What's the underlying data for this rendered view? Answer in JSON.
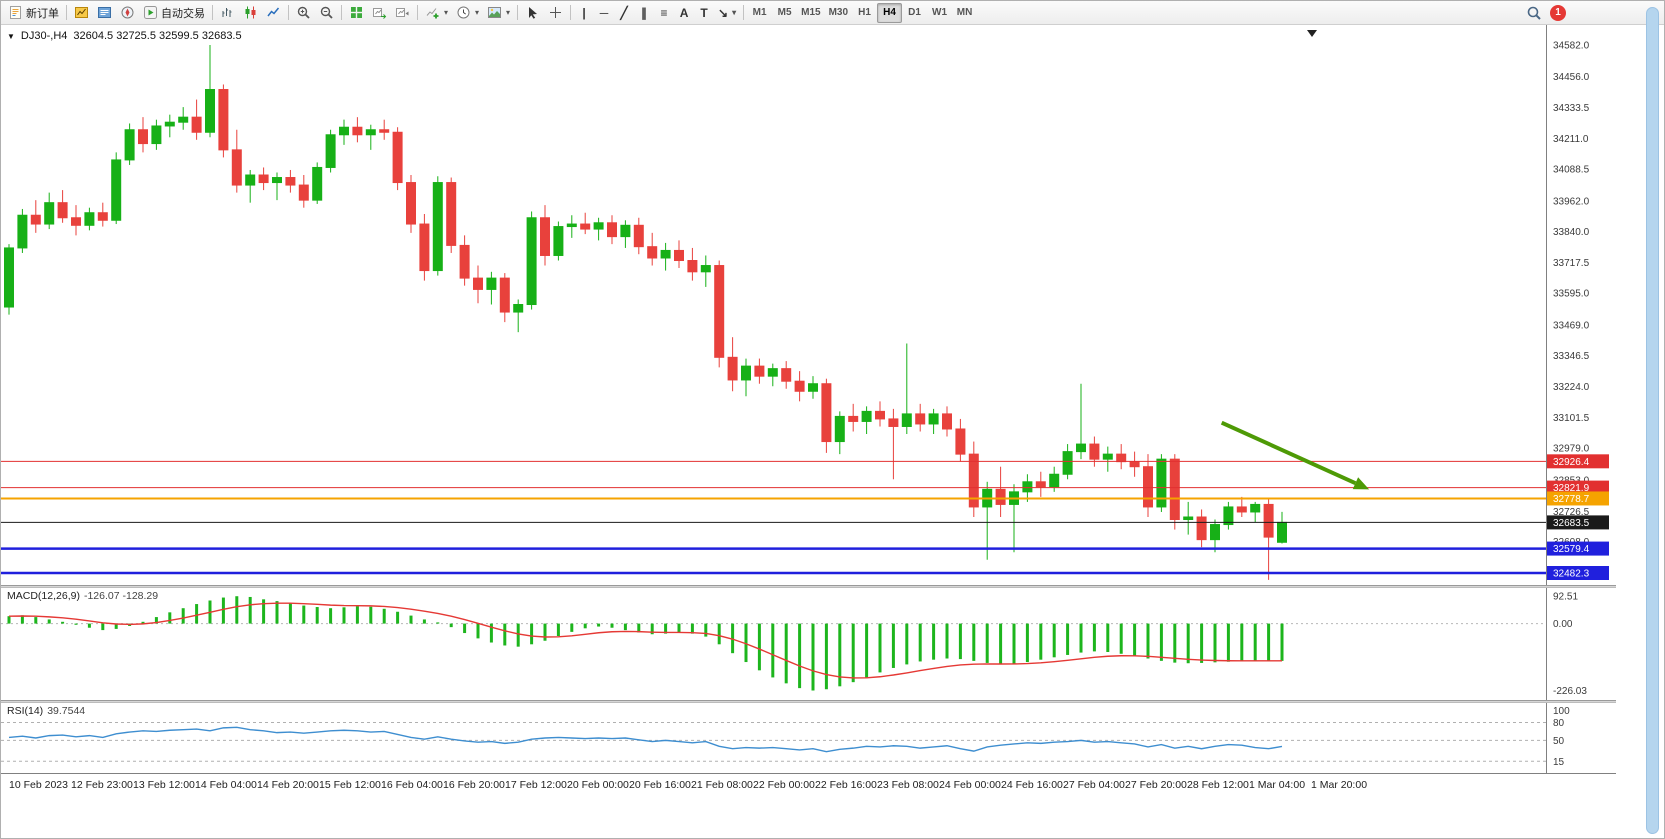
{
  "toolbar": {
    "new_order_label": "新订单",
    "autotrading_label": "自动交易",
    "timeframes": [
      "M1",
      "M5",
      "M15",
      "M30",
      "H1",
      "H4",
      "D1",
      "W1",
      "MN"
    ],
    "active_timeframe": "H4",
    "notification_count": "1",
    "line_tools": [
      {
        "name": "vertical-line",
        "glyph": "|"
      },
      {
        "name": "horizontal-line",
        "glyph": "─"
      },
      {
        "name": "trendline",
        "glyph": "╱"
      },
      {
        "name": "equidistant-channel",
        "glyph": "∥"
      },
      {
        "name": "fibonacci-retracement",
        "glyph": "≡"
      },
      {
        "name": "text",
        "glyph": "A"
      },
      {
        "name": "text-label",
        "glyph": "T"
      },
      {
        "name": "arrows",
        "glyph": "↘",
        "dropdown": true
      }
    ],
    "icons": {
      "new-order": "document",
      "new-chart": "gold-chart",
      "profiles": "blue-window",
      "navigator": "compass",
      "autotrading": "play",
      "bar-chart": "bars",
      "candlestick-chart": "candles",
      "line-chart": "zigzag",
      "zoom-in": "magnifier-plus",
      "zoom-out": "magnifier-minus",
      "tile-windows": "green-grid",
      "auto-scroll": "chart-right-arrow",
      "chart-shift": "chart-left-triangle",
      "indicators": "green-plus-chart",
      "periods": "clock",
      "templates": "picture",
      "cursor": "pointer-arrow",
      "crosshair": "cross",
      "search": "magnifier"
    }
  },
  "chart": {
    "symbol_period": "DJ30-,H4",
    "ohlc_text": "32604.5 32725.5 32599.5 32683.5",
    "scale": {
      "top": 34582.0,
      "bottom": 32482.3
    },
    "colors": {
      "up": "#17b017",
      "down": "#e8413c",
      "background": "#ffffff"
    },
    "price_axis": [
      "34582.0",
      "34456.0",
      "34333.5",
      "34211.0",
      "34088.5",
      "33962.0",
      "33840.0",
      "33717.5",
      "33595.0",
      "33469.0",
      "33346.5",
      "33224.0",
      "33101.5",
      "32979.0",
      "32853.0",
      "32726.5",
      "32608.0",
      "32481.5"
    ],
    "lines": [
      {
        "price": 32926.4,
        "label": "32926.4",
        "color": "#e23030",
        "width": 1
      },
      {
        "price": 32821.9,
        "label": "32821.9",
        "color": "#e23030",
        "width": 1
      },
      {
        "price": 32778.7,
        "label": "32778.7",
        "color": "#f5a300",
        "width": 2
      },
      {
        "price": 32683.5,
        "label": "32683.5",
        "color": "#1a1a1a",
        "width": 1
      },
      {
        "price": 32579.4,
        "label": "32579.4",
        "color": "#2020dd",
        "width": 2.5
      },
      {
        "price": 32482.3,
        "label": "32482.3",
        "color": "#2020dd",
        "width": 2.5
      }
    ],
    "arrow": {
      "from": {
        "bar": 90.5,
        "price": 33080
      },
      "to": {
        "bar": 101.5,
        "price": 32815
      },
      "color": "#4e9a06"
    },
    "candles": [
      [
        33540,
        33790,
        33510,
        33775
      ],
      [
        33775,
        33930,
        33755,
        33905
      ],
      [
        33905,
        33965,
        33835,
        33870
      ],
      [
        33870,
        33995,
        33850,
        33955
      ],
      [
        33955,
        34005,
        33875,
        33895
      ],
      [
        33895,
        33945,
        33825,
        33865
      ],
      [
        33865,
        33935,
        33845,
        33915
      ],
      [
        33915,
        33955,
        33860,
        33885
      ],
      [
        33885,
        34155,
        33870,
        34125
      ],
      [
        34125,
        34270,
        34105,
        34245
      ],
      [
        34245,
        34295,
        34155,
        34190
      ],
      [
        34190,
        34285,
        34165,
        34260
      ],
      [
        34260,
        34305,
        34215,
        34275
      ],
      [
        34275,
        34335,
        34245,
        34295
      ],
      [
        34295,
        34365,
        34205,
        34235
      ],
      [
        34235,
        34582,
        34215,
        34405
      ],
      [
        34405,
        34425,
        34135,
        34165
      ],
      [
        34165,
        34245,
        33995,
        34025
      ],
      [
        34025,
        34085,
        33955,
        34065
      ],
      [
        34065,
        34095,
        34005,
        34035
      ],
      [
        34035,
        34075,
        33965,
        34055
      ],
      [
        34055,
        34085,
        33995,
        34025
      ],
      [
        34025,
        34065,
        33935,
        33965
      ],
      [
        33965,
        34115,
        33950,
        34095
      ],
      [
        34095,
        34245,
        34075,
        34225
      ],
      [
        34225,
        34285,
        34185,
        34255
      ],
      [
        34255,
        34295,
        34195,
        34225
      ],
      [
        34225,
        34265,
        34165,
        34245
      ],
      [
        34245,
        34285,
        34205,
        34235
      ],
      [
        34235,
        34255,
        34005,
        34035
      ],
      [
        34035,
        34065,
        33835,
        33870
      ],
      [
        33870,
        33910,
        33645,
        33685
      ],
      [
        33685,
        34060,
        33665,
        34035
      ],
      [
        34035,
        34055,
        33755,
        33785
      ],
      [
        33785,
        33825,
        33625,
        33655
      ],
      [
        33655,
        33705,
        33555,
        33610
      ],
      [
        33610,
        33680,
        33550,
        33655
      ],
      [
        33655,
        33675,
        33480,
        33520
      ],
      [
        33520,
        33570,
        33440,
        33550
      ],
      [
        33550,
        33920,
        33530,
        33895
      ],
      [
        33895,
        33945,
        33705,
        33745
      ],
      [
        33745,
        33880,
        33725,
        33860
      ],
      [
        33860,
        33905,
        33815,
        33870
      ],
      [
        33870,
        33915,
        33830,
        33850
      ],
      [
        33850,
        33895,
        33805,
        33875
      ],
      [
        33875,
        33905,
        33790,
        33820
      ],
      [
        33820,
        33885,
        33775,
        33865
      ],
      [
        33865,
        33895,
        33750,
        33780
      ],
      [
        33780,
        33835,
        33705,
        33735
      ],
      [
        33735,
        33795,
        33685,
        33765
      ],
      [
        33765,
        33805,
        33695,
        33725
      ],
      [
        33725,
        33775,
        33645,
        33680
      ],
      [
        33680,
        33745,
        33620,
        33705
      ],
      [
        33705,
        33725,
        33300,
        33340
      ],
      [
        33340,
        33420,
        33205,
        33250
      ],
      [
        33250,
        33335,
        33185,
        33305
      ],
      [
        33305,
        33335,
        33235,
        33265
      ],
      [
        33265,
        33315,
        33225,
        33295
      ],
      [
        33295,
        33325,
        33215,
        33245
      ],
      [
        33245,
        33285,
        33165,
        33205
      ],
      [
        33205,
        33265,
        33175,
        33235
      ],
      [
        33235,
        33255,
        32960,
        33005
      ],
      [
        33005,
        33125,
        32955,
        33105
      ],
      [
        33105,
        33155,
        33045,
        33085
      ],
      [
        33085,
        33145,
        33035,
        33125
      ],
      [
        33125,
        33165,
        33065,
        33095
      ],
      [
        33095,
        33135,
        32855,
        33065
      ],
      [
        33065,
        33395,
        33035,
        33115
      ],
      [
        33115,
        33155,
        33045,
        33075
      ],
      [
        33075,
        33135,
        33035,
        33115
      ],
      [
        33115,
        33145,
        33025,
        33055
      ],
      [
        33055,
        33095,
        32925,
        32955
      ],
      [
        32955,
        33005,
        32705,
        32745
      ],
      [
        32745,
        32845,
        32535,
        32815
      ],
      [
        32815,
        32905,
        32705,
        32755
      ],
      [
        32755,
        32835,
        32565,
        32805
      ],
      [
        32805,
        32875,
        32765,
        32845
      ],
      [
        32845,
        32885,
        32785,
        32825
      ],
      [
        32825,
        32905,
        32805,
        32875
      ],
      [
        32875,
        32995,
        32855,
        32965
      ],
      [
        32965,
        33235,
        32935,
        32995
      ],
      [
        32995,
        33025,
        32905,
        32935
      ],
      [
        32935,
        32985,
        32885,
        32955
      ],
      [
        32955,
        32995,
        32895,
        32925
      ],
      [
        32925,
        32965,
        32865,
        32905
      ],
      [
        32905,
        32955,
        32705,
        32745
      ],
      [
        32745,
        32955,
        32725,
        32935
      ],
      [
        32935,
        32955,
        32655,
        32695
      ],
      [
        32695,
        32765,
        32635,
        32705
      ],
      [
        32705,
        32735,
        32585,
        32615
      ],
      [
        32615,
        32695,
        32565,
        32675
      ],
      [
        32675,
        32765,
        32655,
        32745
      ],
      [
        32745,
        32785,
        32705,
        32725
      ],
      [
        32725,
        32765,
        32685,
        32755
      ],
      [
        32755,
        32775,
        32455,
        32625
      ],
      [
        32604.5,
        32725.5,
        32599.5,
        32683.5
      ]
    ]
  },
  "macd": {
    "label": "MACD(12,26,9)",
    "values_text": "-126.07 -128.29",
    "axis": [
      "92.51",
      "0.00",
      "-226.03"
    ],
    "colors": {
      "histogram": "#1db51d",
      "signal": "#e53935"
    },
    "histogram": [
      25,
      28,
      22,
      14,
      6,
      -4,
      -14,
      -22,
      -18,
      -8,
      6,
      22,
      38,
      52,
      66,
      78,
      88,
      92.5,
      90,
      82,
      76,
      68,
      61,
      56,
      52,
      55,
      59,
      57,
      50,
      40,
      27,
      14,
      4,
      -12,
      -32,
      -50,
      -64,
      -74,
      -78,
      -70,
      -58,
      -42,
      -28,
      -16,
      -10,
      -14,
      -22,
      -30,
      -36,
      -34,
      -30,
      -34,
      -44,
      -70,
      -100,
      -130,
      -158,
      -182,
      -202,
      -218,
      -226,
      -222,
      -212,
      -198,
      -182,
      -165,
      -150,
      -138,
      -128,
      -122,
      -118,
      -120,
      -126,
      -133,
      -138,
      -136,
      -130,
      -122,
      -114,
      -106,
      -98,
      -94,
      -96,
      -102,
      -110,
      -118,
      -126,
      -132,
      -134,
      -133,
      -131,
      -129,
      -127,
      -126,
      -126,
      -126.07
    ]
  },
  "rsi": {
    "label": "RSI(14)",
    "value_text": "39.7544",
    "axis": [
      "100",
      "80",
      "50",
      "15"
    ],
    "levels": [
      80,
      50,
      15
    ],
    "color": "#3e8ed0",
    "values": [
      55,
      57,
      54,
      58,
      59,
      56,
      58,
      55,
      61,
      64,
      66,
      65,
      67,
      68,
      69,
      66,
      71,
      72,
      68,
      66,
      63,
      64,
      62,
      64,
      66,
      67,
      66,
      64,
      65,
      60,
      55,
      52,
      56,
      52,
      49,
      47,
      48,
      45,
      47,
      52,
      54,
      55,
      54,
      53,
      54,
      53,
      54,
      51,
      48,
      50,
      48,
      46,
      48,
      40,
      36,
      38,
      37,
      38,
      36,
      34,
      36,
      31,
      35,
      37,
      40,
      39,
      41,
      40,
      37,
      39,
      41,
      36,
      32,
      39,
      42,
      44,
      46,
      45,
      47,
      48,
      50,
      47,
      48,
      46,
      44,
      39,
      43,
      37,
      40,
      36,
      40,
      43,
      42,
      38,
      36,
      39.75
    ]
  },
  "time_axis": [
    "10 Feb 2023",
    "12 Feb 23:00",
    "13 Feb 12:00",
    "14 Feb 04:00",
    "14 Feb 20:00",
    "15 Feb 12:00",
    "16 Feb 04:00",
    "16 Feb 20:00",
    "17 Feb 12:00",
    "20 Feb 00:00",
    "20 Feb 16:00",
    "21 Feb 08:00",
    "22 Feb 00:00",
    "22 Feb 16:00",
    "23 Feb 08:00",
    "24 Feb 00:00",
    "24 Feb 16:00",
    "27 Feb 04:00",
    "27 Feb 20:00",
    "28 Feb 12:00",
    "1 Mar 04:00",
    "1 Mar 20:00"
  ]
}
